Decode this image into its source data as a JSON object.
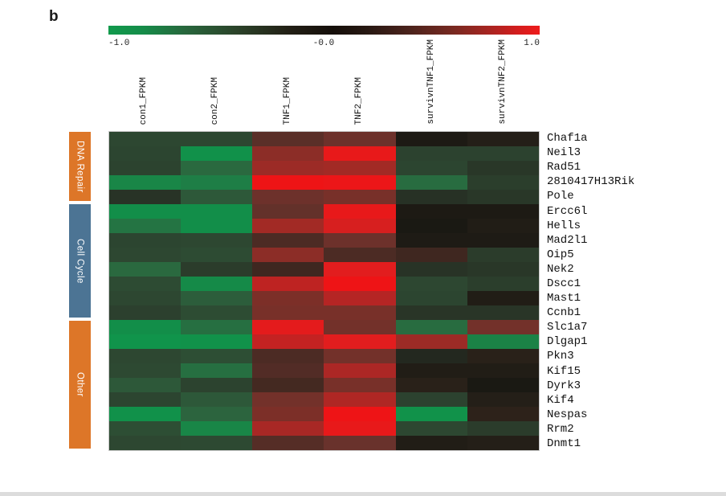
{
  "chart_data": {
    "type": "heatmap",
    "panel_label": "b",
    "columns": [
      "con1_FPKM",
      "con2_FPKM",
      "TNF1_FPKM",
      "TNF2_FPKM",
      "survivnTNF1_FPKM",
      "survivnTNF2_FPKM"
    ],
    "rows": [
      "Chaf1a",
      "Neil3",
      "Rad51",
      "2810417H13Rik",
      "Pole",
      "Ercc6l",
      "Hells",
      "Mad2l1",
      "Oip5",
      "Nek2",
      "Dscc1",
      "Mast1",
      "Ccnb1",
      "Slc1a7",
      "Dlgap1",
      "Pkn3",
      "Kif15",
      "Dyrk3",
      "Kif4",
      "Nespas",
      "Rrm2",
      "Dnmt1"
    ],
    "values": [
      [
        -0.4,
        -0.4,
        0.35,
        0.42,
        0.02,
        0.08
      ],
      [
        -0.38,
        -0.88,
        0.55,
        0.95,
        -0.35,
        -0.35
      ],
      [
        -0.36,
        -0.58,
        0.6,
        0.62,
        -0.38,
        -0.22
      ],
      [
        -0.78,
        -0.72,
        1.0,
        0.98,
        -0.6,
        -0.3
      ],
      [
        -0.18,
        -0.5,
        0.42,
        0.48,
        -0.15,
        -0.22
      ],
      [
        -0.85,
        -0.85,
        0.38,
        0.95,
        0.02,
        0.02
      ],
      [
        -0.65,
        -0.85,
        0.62,
        0.85,
        0.0,
        0.05
      ],
      [
        -0.38,
        -0.4,
        0.3,
        0.42,
        0.03,
        0.03
      ],
      [
        -0.4,
        -0.44,
        0.55,
        0.3,
        0.25,
        -0.28
      ],
      [
        -0.58,
        -0.28,
        0.25,
        0.9,
        -0.18,
        -0.22
      ],
      [
        -0.44,
        -0.82,
        0.72,
        1.0,
        -0.4,
        -0.3
      ],
      [
        -0.4,
        -0.52,
        0.5,
        0.68,
        -0.38,
        0.05
      ],
      [
        -0.33,
        -0.45,
        0.48,
        0.48,
        -0.2,
        -0.2
      ],
      [
        -0.85,
        -0.62,
        0.92,
        0.45,
        -0.6,
        0.45
      ],
      [
        -0.92,
        -0.9,
        0.75,
        0.9,
        0.6,
        -0.75
      ],
      [
        -0.4,
        -0.46,
        0.3,
        0.45,
        -0.08,
        0.12
      ],
      [
        -0.42,
        -0.62,
        0.32,
        0.65,
        0.05,
        0.05
      ],
      [
        -0.5,
        -0.36,
        0.27,
        0.48,
        0.12,
        0.0
      ],
      [
        -0.38,
        -0.5,
        0.45,
        0.66,
        -0.35,
        0.08
      ],
      [
        -0.88,
        -0.55,
        0.5,
        1.0,
        -0.9,
        0.15
      ],
      [
        -0.46,
        -0.78,
        0.64,
        0.95,
        -0.4,
        -0.28
      ],
      [
        -0.4,
        -0.42,
        0.33,
        0.4,
        0.05,
        0.08
      ]
    ],
    "row_groups": [
      {
        "label": "DNA Repair",
        "start": 0,
        "count": 5,
        "color": "#dd7628"
      },
      {
        "label": "Cell Cycle",
        "start": 5,
        "count": 8,
        "color": "#4c7494"
      },
      {
        "label": "Other",
        "start": 13,
        "count": 9,
        "color": "#dd7628"
      }
    ],
    "colorbar": {
      "ticks": [
        "-1.0",
        "-0.0",
        "1.0"
      ],
      "range": [
        -1,
        1
      ],
      "gradient": [
        [
          0.0,
          "#119a4c"
        ],
        [
          0.08,
          "#158c49"
        ],
        [
          0.18,
          "#28663c"
        ],
        [
          0.3,
          "#2b4229"
        ],
        [
          0.42,
          "#221f15"
        ],
        [
          0.52,
          "#150f0a"
        ],
        [
          0.6,
          "#271812"
        ],
        [
          0.7,
          "#4c231c"
        ],
        [
          0.8,
          "#782921"
        ],
        [
          0.88,
          "#a62521"
        ],
        [
          0.95,
          "#d41d1d"
        ],
        [
          1.0,
          "#ee1c1c"
        ]
      ]
    },
    "colormap_stops": [
      [
        -1.0,
        "#0e9b4d"
      ],
      [
        -0.85,
        "#128e49"
      ],
      [
        -0.7,
        "#207c45"
      ],
      [
        -0.55,
        "#2c643e"
      ],
      [
        -0.45,
        "#2d4c33"
      ],
      [
        -0.35,
        "#2c422f"
      ],
      [
        -0.2,
        "#293527"
      ],
      [
        -0.1,
        "#252c22"
      ],
      [
        0.0,
        "#1a1913"
      ],
      [
        0.1,
        "#272019"
      ],
      [
        0.2,
        "#32231b"
      ],
      [
        0.3,
        "#4c2b24"
      ],
      [
        0.4,
        "#69322c"
      ],
      [
        0.5,
        "#7c2f28"
      ],
      [
        0.6,
        "#9c2b26"
      ],
      [
        0.7,
        "#bb2423"
      ],
      [
        0.8,
        "#cc2020"
      ],
      [
        0.9,
        "#e21d1e"
      ],
      [
        1.0,
        "#ee1416"
      ]
    ]
  }
}
